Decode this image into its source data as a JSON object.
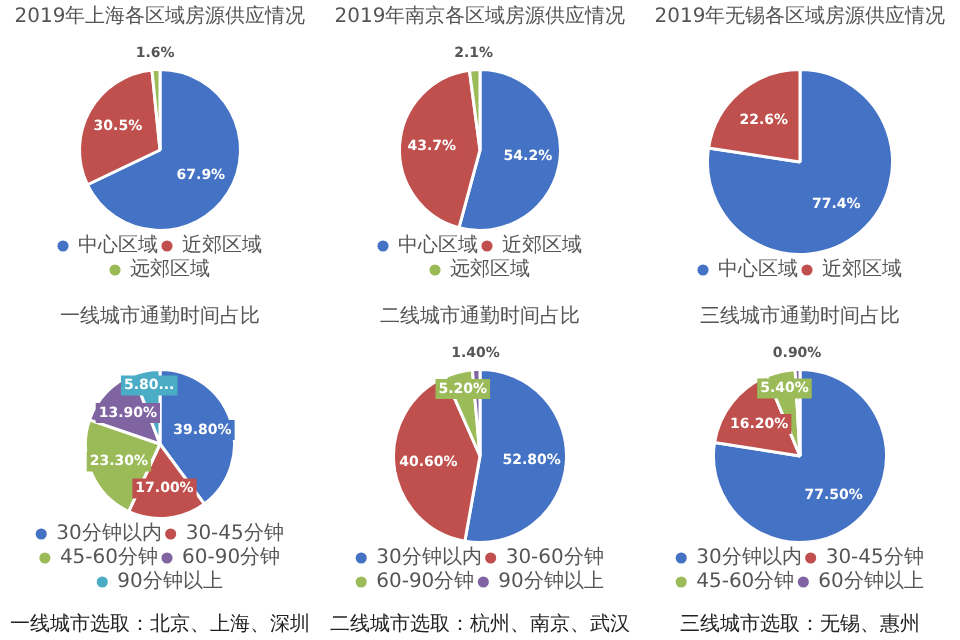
{
  "chart_data": [
    {
      "type": "pie",
      "title": "2019年上海各区域房源供应情况",
      "categories": [
        "中心区域",
        "近郊区域",
        "远郊区域"
      ],
      "values": [
        67.9,
        30.5,
        1.6
      ],
      "colors": [
        "#4472c4",
        "#c0504d",
        "#9bbb59"
      ],
      "value_labels": [
        "67.9%",
        "30.5%",
        "1.6%"
      ],
      "legend": "bottom"
    },
    {
      "type": "pie",
      "title": "2019年南京各区域房源供应情况",
      "categories": [
        "中心区域",
        "近郊区域",
        "远郊区域"
      ],
      "values": [
        54.2,
        43.7,
        2.1
      ],
      "colors": [
        "#4472c4",
        "#c0504d",
        "#9bbb59"
      ],
      "value_labels": [
        "54.2%",
        "43.7%",
        "2.1%"
      ],
      "legend": "bottom"
    },
    {
      "type": "pie",
      "title": "2019年无锡各区域房源供应情况",
      "categories": [
        "中心区域",
        "近郊区域"
      ],
      "values": [
        77.4,
        22.6
      ],
      "colors": [
        "#4472c4",
        "#c0504d"
      ],
      "value_labels": [
        "77.4%",
        "22.6%"
      ],
      "legend": "bottom"
    },
    {
      "type": "pie",
      "title": "一线城市通勤时间占比",
      "categories": [
        "30分钟以内",
        "30-45分钟",
        "45-60分钟",
        "60-90分钟",
        "90分钟以上"
      ],
      "values": [
        39.8,
        17.0,
        23.3,
        13.9,
        5.8
      ],
      "colors": [
        "#4472c4",
        "#c0504d",
        "#9bbb59",
        "#8064a2",
        "#4bacc6"
      ],
      "value_labels": [
        "39.80%",
        "17.00%",
        "23.30%",
        "13.90%",
        "5.80..."
      ],
      "legend": "bottom",
      "annotations": [
        "一线城市选取：北京、上海、深圳"
      ]
    },
    {
      "type": "pie",
      "title": "二线城市通勤时间占比",
      "categories": [
        "30分钟以内",
        "30-60分钟",
        "60-90分钟",
        "90分钟以上"
      ],
      "values": [
        52.8,
        40.6,
        5.2,
        1.4
      ],
      "colors": [
        "#4472c4",
        "#c0504d",
        "#9bbb59",
        "#8064a2"
      ],
      "value_labels": [
        "52.80%",
        "40.60%",
        "5.20%",
        "1.40%"
      ],
      "legend": "bottom",
      "annotations": [
        "二线城市选取：杭州、南京、武汉"
      ]
    },
    {
      "type": "pie",
      "title": "三线城市通勤时间占比",
      "categories": [
        "30分钟以内",
        "30-45分钟",
        "45-60分钟",
        "60分钟以上"
      ],
      "values": [
        77.5,
        16.2,
        5.4,
        0.9
      ],
      "colors": [
        "#4472c4",
        "#c0504d",
        "#9bbb59",
        "#8064a2"
      ],
      "value_labels": [
        "77.50%",
        "16.20%",
        "5.40%",
        "0.90%"
      ],
      "legend": "bottom",
      "annotations": [
        "三线城市选取：无锡、惠州"
      ]
    }
  ]
}
